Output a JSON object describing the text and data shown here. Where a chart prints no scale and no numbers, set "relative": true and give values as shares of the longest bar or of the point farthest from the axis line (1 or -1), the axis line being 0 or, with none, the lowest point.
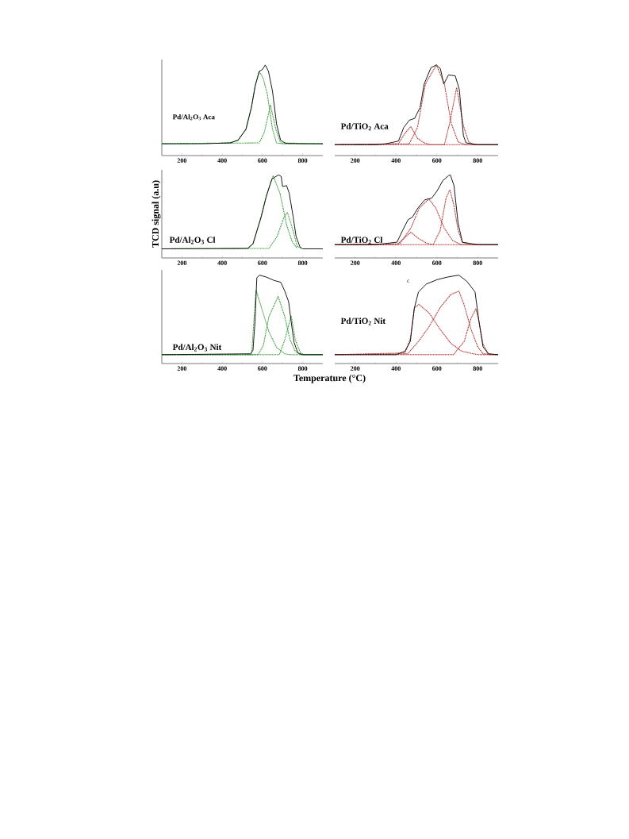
{
  "chart_data": [
    {
      "type": "line",
      "title": "Pd/Al$_{2}$O$_{3}$ Aca",
      "relative": true,
      "tick_labels": "x",
      "xlim": [
        100,
        900
      ],
      "xticks": [
        200,
        {
          "value": 300,
          "label": null
        },
        400,
        {
          "value": 500,
          "label": null
        },
        600,
        {
          "value": 700,
          "label": null
        },
        800
      ],
      "series": [
        {
          "color": "#000000",
          "line_style": "solid",
          "x": [
            100,
            300,
            440,
            479,
            518,
            545,
            564,
            584,
            600,
            614,
            630,
            650,
            670,
            690,
            716,
            800,
            900
          ],
          "values": [
            0.13,
            0.13,
            0.14,
            0.17,
            0.29,
            0.53,
            0.77,
            0.93,
            0.95,
            1.0,
            0.93,
            0.71,
            0.35,
            0.17,
            0.135,
            0.13,
            0.13
          ]
        },
        {
          "color": "#3a9a3a",
          "line_style": "dotted",
          "x": [
            100,
            440,
            479,
            518,
            545,
            564,
            584,
            604,
            624,
            650,
            670,
            700,
            900
          ],
          "values": [
            0.13,
            0.14,
            0.17,
            0.29,
            0.53,
            0.77,
            0.93,
            0.85,
            0.68,
            0.29,
            0.14,
            0.13,
            0.13
          ]
        },
        {
          "color": "#3a9a3a",
          "line_style": "dotted",
          "x": [
            100,
            584,
            610,
            640,
            665,
            690,
            900
          ],
          "values": [
            0.13,
            0.14,
            0.26,
            0.56,
            0.3,
            0.14,
            0.13
          ]
        }
      ]
    },
    {
      "type": "line",
      "title": "Pd/TiO$_{2}$ Aca",
      "relative": true,
      "tick_labels": "x",
      "xlim": [
        100,
        900
      ],
      "xticks": [
        200,
        {
          "value": 300,
          "label": null
        },
        400,
        {
          "value": 500,
          "label": null
        },
        600,
        {
          "value": 700,
          "label": null
        },
        800
      ],
      "series": [
        {
          "color": "#000000",
          "line_style": "solid",
          "x": [
            100,
            300,
            350,
            412,
            438,
            465,
            491,
            518,
            538,
            571,
            598,
            617,
            634,
            657,
            690,
            710,
            730,
            743,
            800,
            900
          ],
          "values": [
            0.12,
            0.12,
            0.13,
            0.16,
            0.31,
            0.39,
            0.41,
            0.53,
            0.79,
            0.97,
            1.0,
            0.96,
            0.79,
            0.89,
            0.88,
            0.73,
            0.22,
            0.14,
            0.12,
            0.12
          ]
        },
        {
          "color": "#b03030",
          "line_style": "dotted",
          "x": [
            100,
            412,
            445,
            472,
            505,
            538,
            570,
            900
          ],
          "values": [
            0.12,
            0.13,
            0.25,
            0.32,
            0.19,
            0.14,
            0.12,
            0.12
          ]
        },
        {
          "color": "#b03030",
          "line_style": "dotted",
          "x": [
            100,
            465,
            505,
            544,
            598,
            637,
            670,
            704,
            740,
            900
          ],
          "values": [
            0.12,
            0.13,
            0.31,
            0.79,
            1.0,
            0.79,
            0.36,
            0.15,
            0.12,
            0.12
          ]
        },
        {
          "color": "#b03030",
          "line_style": "dotted",
          "x": [
            100,
            637,
            663,
            697,
            730,
            756,
            780,
            900
          ],
          "values": [
            0.12,
            0.12,
            0.36,
            0.75,
            0.33,
            0.15,
            0.12,
            0.12
          ]
        }
      ]
    },
    {
      "type": "line",
      "title": "Pd/Al$_{2}$O$_{3}$ Cl",
      "ylabel": "TCD signal (a.u)",
      "relative": true,
      "tick_labels": "x",
      "xlim": [
        100,
        900
      ],
      "xticks": [
        200,
        {
          "value": 300,
          "label": null
        },
        400,
        {
          "value": 500,
          "label": null
        },
        600,
        {
          "value": 700,
          "label": null
        },
        800
      ],
      "series": [
        {
          "color": "#000000",
          "line_style": "solid",
          "x": [
            100,
            527,
            553,
            593,
            620,
            647,
            680,
            693,
            700,
            720,
            733,
            753,
            767,
            787,
            800,
            900
          ],
          "values": [
            0.11,
            0.115,
            0.17,
            0.49,
            0.75,
            0.95,
            1.0,
            0.98,
            0.86,
            0.87,
            0.78,
            0.49,
            0.26,
            0.13,
            0.11,
            0.11
          ]
        },
        {
          "color": "#3a9a3a",
          "line_style": "dotted",
          "x": [
            527,
            553,
            593,
            620,
            653,
            687,
            720,
            747,
            773
          ],
          "values": [
            0.115,
            0.17,
            0.49,
            0.75,
            0.99,
            0.78,
            0.4,
            0.2,
            0.115
          ]
        },
        {
          "color": "#3a9a3a",
          "line_style": "dotted",
          "x": [
            100,
            633,
            673,
            707,
            724,
            747,
            773,
            793
          ],
          "values": [
            0.11,
            0.115,
            0.26,
            0.49,
            0.55,
            0.37,
            0.14,
            0.115
          ]
        }
      ]
    },
    {
      "type": "line",
      "title": "Pd/TiO$_{2}$ Cl",
      "relative": true,
      "tick_labels": "x",
      "xlim": [
        100,
        900
      ],
      "xticks": [
        200,
        {
          "value": 300,
          "label": null
        },
        400,
        {
          "value": 500,
          "label": null
        },
        600,
        {
          "value": 700,
          "label": null
        },
        800
      ],
      "series": [
        {
          "color": "#000000",
          "line_style": "solid",
          "x": [
            100,
            300,
            405,
            432,
            459,
            480,
            507,
            541,
            575,
            602,
            629,
            657,
            666,
            684,
            704,
            725,
            800,
            900
          ],
          "values": [
            0.16,
            0.16,
            0.19,
            0.33,
            0.46,
            0.49,
            0.6,
            0.7,
            0.72,
            0.81,
            0.93,
            0.99,
            1.0,
            0.87,
            0.42,
            0.19,
            0.16,
            0.16
          ]
        },
        {
          "color": "#b03030",
          "line_style": "dotted",
          "x": [
            100,
            405,
            445,
            473,
            507,
            548,
            580,
            900
          ],
          "values": [
            0.16,
            0.16,
            0.25,
            0.31,
            0.24,
            0.18,
            0.16,
            0.16
          ]
        },
        {
          "color": "#b03030",
          "line_style": "dotted",
          "x": [
            100,
            418,
            473,
            514,
            561,
            595,
            636,
            677,
            720,
            900
          ],
          "values": [
            0.16,
            0.17,
            0.36,
            0.6,
            0.71,
            0.6,
            0.36,
            0.21,
            0.16,
            0.16
          ]
        },
        {
          "color": "#b03030",
          "line_style": "dotted",
          "x": [
            100,
            582,
            616,
            645,
            664,
            684,
            704,
            725,
            760,
            900
          ],
          "values": [
            0.16,
            0.16,
            0.33,
            0.72,
            0.82,
            0.63,
            0.33,
            0.19,
            0.16,
            0.16
          ]
        }
      ]
    },
    {
      "type": "line",
      "title": "Pd/Al$_{2}$O$_{3}$ Nit",
      "xlabel": "Temperature (°C)",
      "relative": true,
      "tick_labels": "x",
      "xlim": [
        100,
        900
      ],
      "xticks": [
        200,
        {
          "value": 300,
          "label": null
        },
        400,
        {
          "value": 500,
          "label": null
        },
        600,
        {
          "value": 700,
          "label": null
        },
        800
      ],
      "series": [
        {
          "color": "#000000",
          "line_style": "solid",
          "x": [
            100,
            540,
            553,
            563,
            572,
            585,
            618,
            658,
            691,
            711,
            730,
            743,
            757,
            776,
            800,
            900
          ],
          "values": [
            0.1,
            0.11,
            0.15,
            0.47,
            0.97,
            1.0,
            0.98,
            0.94,
            0.92,
            0.82,
            0.7,
            0.47,
            0.24,
            0.12,
            0.1,
            0.1
          ]
        },
        {
          "color": "#3a9a3a",
          "line_style": "dotted",
          "x": [
            100,
            546,
            568,
            605,
            632,
            671,
            711,
            737,
            900
          ],
          "values": [
            0.1,
            0.1,
            0.83,
            0.56,
            0.36,
            0.18,
            0.11,
            0.1,
            0.1
          ]
        },
        {
          "color": "#3a9a3a",
          "line_style": "dotted",
          "x": [
            100,
            579,
            605,
            632,
            678,
            711,
            737,
            763,
            789,
            900
          ],
          "values": [
            0.1,
            0.1,
            0.21,
            0.53,
            0.76,
            0.53,
            0.27,
            0.14,
            0.1,
            0.1
          ]
        },
        {
          "color": "#3a9a3a",
          "line_style": "dotted",
          "x": [
            100,
            684,
            711,
            743,
            763,
            789,
            810,
            900
          ],
          "values": [
            0.1,
            0.1,
            0.27,
            0.54,
            0.27,
            0.12,
            0.1,
            0.1
          ]
        }
      ]
    },
    {
      "type": "line",
      "title": "Pd/TiO$_{2}$ Nit",
      "annotations": [
        "c"
      ],
      "relative": true,
      "tick_labels": "x",
      "xlim": [
        100,
        900
      ],
      "xticks": [
        200,
        {
          "value": 300,
          "label": null
        },
        400,
        {
          "value": 500,
          "label": null
        },
        600,
        {
          "value": 700,
          "label": null
        },
        800
      ],
      "series": [
        {
          "color": "#000000",
          "line_style": "solid",
          "x": [
            100,
            400,
            444,
            470,
            490,
            510,
            549,
            602,
            655,
            708,
            747,
            787,
            806,
            826,
            853,
            900
          ],
          "values": [
            0.1,
            0.1,
            0.14,
            0.25,
            0.63,
            0.81,
            0.9,
            0.95,
            0.98,
            1.0,
            0.93,
            0.81,
            0.48,
            0.19,
            0.11,
            0.1
          ]
        },
        {
          "color": "#b03030",
          "line_style": "dotted",
          "x": [
            100,
            444,
            470,
            490,
            512,
            563,
            615,
            668,
            721,
            800,
            900
          ],
          "values": [
            0.1,
            0.12,
            0.28,
            0.63,
            0.67,
            0.57,
            0.39,
            0.23,
            0.14,
            0.1,
            0.1
          ]
        },
        {
          "color": "#b03030",
          "line_style": "dotted",
          "x": [
            100,
            457,
            510,
            563,
            615,
            668,
            708,
            734,
            767,
            800,
            826,
            900
          ],
          "values": [
            0.1,
            0.11,
            0.25,
            0.42,
            0.63,
            0.78,
            0.82,
            0.66,
            0.39,
            0.19,
            0.11,
            0.1
          ]
        },
        {
          "color": "#b03030",
          "line_style": "dotted",
          "x": [
            100,
            681,
            734,
            767,
            791,
            806,
            826,
            853,
            900
          ],
          "values": [
            0.1,
            0.1,
            0.25,
            0.51,
            0.62,
            0.48,
            0.22,
            0.1,
            0.1
          ]
        }
      ]
    }
  ]
}
